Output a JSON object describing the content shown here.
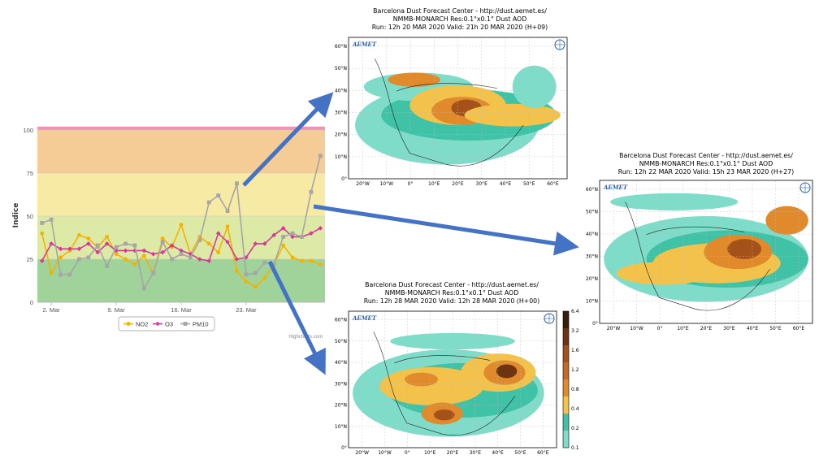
{
  "chart_data": [
    {
      "type": "line",
      "ylabel": "Indice",
      "ylim": [
        0,
        100
      ],
      "yticks": [
        0,
        25,
        50,
        75,
        100
      ],
      "xtick_labels": [
        "2. Mar",
        "9. Mar",
        "16. Mar",
        "23. Mar"
      ],
      "xtick_days": [
        2,
        9,
        16,
        23
      ],
      "x_days": [
        1,
        2,
        3,
        4,
        5,
        6,
        7,
        8,
        9,
        10,
        11,
        12,
        13,
        14,
        15,
        16,
        17,
        18,
        19,
        20,
        21,
        22,
        23,
        24,
        25,
        26,
        27,
        28,
        29,
        30,
        31
      ],
      "bands": [
        {
          "from": 0,
          "to": 25,
          "color": "#9fd39a"
        },
        {
          "from": 25,
          "to": 50,
          "color": "#dceaa5"
        },
        {
          "from": 50,
          "to": 75,
          "color": "#f7eaa4"
        },
        {
          "from": 75,
          "to": 100,
          "color": "#f6cc96"
        },
        {
          "from": 100,
          "to": 102,
          "color": "#ef94b8"
        }
      ],
      "series": [
        {
          "name": "NO2",
          "color": "#f5b200",
          "values": [
            40,
            17,
            26,
            30,
            39,
            37,
            32,
            38,
            28,
            25,
            22,
            27,
            17,
            37,
            32,
            45,
            28,
            38,
            34,
            29,
            44,
            18,
            12,
            9,
            14,
            22,
            33,
            26,
            24,
            24,
            22
          ]
        },
        {
          "name": "O3",
          "color": "#d6399a",
          "values": [
            24,
            34,
            31,
            31,
            31,
            34,
            29,
            34,
            30,
            30,
            30,
            30,
            28,
            29,
            33,
            30,
            28,
            25,
            24,
            40,
            35,
            25,
            26,
            34,
            34,
            39,
            43,
            38,
            38,
            40,
            43
          ]
        },
        {
          "name": "PM10",
          "color": "#a6a6a6",
          "values": [
            46,
            48,
            16,
            16,
            25,
            26,
            33,
            21,
            32,
            34,
            33,
            8,
            17,
            35,
            25,
            28,
            26,
            36,
            58,
            62,
            53,
            69,
            16,
            17,
            23,
            22,
            38,
            40,
            38,
            64,
            85
          ]
        }
      ],
      "credit": "Highcharts.com"
    },
    {
      "type": "heatmap",
      "title": [
        "Barcelona Dust Forecast Center - http://dust.aemet.es/",
        "NMMB-MONARCH   Res:0.1°x0.1°   Dust AOD",
        "Run: 12h 20 MAR 2020   Valid: 21h 20 MAR 2020 (H+09)"
      ],
      "lat_ticks": [
        "0°",
        "10°N",
        "20°N",
        "30°N",
        "40°N",
        "50°N",
        "60°N"
      ],
      "lon_ticks": [
        "20°W",
        "10°W",
        "0°",
        "10°E",
        "20°E",
        "30°E",
        "40°E",
        "50°E",
        "60°E"
      ]
    },
    {
      "type": "heatmap",
      "title": [
        "Barcelona Dust Forecast Center - http://dust.aemet.es/",
        "NMMB-MONARCH   Res:0.1°x0.1°   Dust AOD",
        "Run: 12h 22 MAR 2020   Valid: 15h 23 MAR 2020 (H+27)"
      ],
      "lat_ticks": [
        "0°",
        "10°N",
        "20°N",
        "30°N",
        "40°N",
        "50°N",
        "60°N"
      ],
      "lon_ticks": [
        "20°W",
        "10°W",
        "0°",
        "10°E",
        "20°E",
        "30°E",
        "40°E",
        "50°E",
        "60°E"
      ]
    },
    {
      "type": "heatmap",
      "title": [
        "Barcelona Dust Forecast Center - http://dust.aemet.es/",
        "NMMB-MONARCH   Res:0.1°x0.1°   Dust AOD",
        "Run: 12h 28 MAR 2020   Valid: 12h 28 MAR 2020 (H+00)"
      ],
      "lat_ticks": [
        "0°",
        "10°N",
        "20°N",
        "30°N",
        "40°N",
        "50°N",
        "60°N"
      ],
      "lon_ticks": [
        "20°W",
        "10°W",
        "0°",
        "10°E",
        "20°E",
        "30°E",
        "40°E",
        "50°E",
        "60°E"
      ],
      "colorbar_ticks": [
        "0.1",
        "0.2",
        "0.4",
        "0.8",
        "1.2",
        "1.6",
        "3.2",
        "6.4"
      ],
      "colorbar_colors": [
        "#7fdcc9",
        "#3fc2a6",
        "#f2c24a",
        "#e08a2c",
        "#c56a22",
        "#a4521a",
        "#6e3412",
        "#3a1a08"
      ]
    }
  ],
  "brand": {
    "logo": "AEMET"
  }
}
